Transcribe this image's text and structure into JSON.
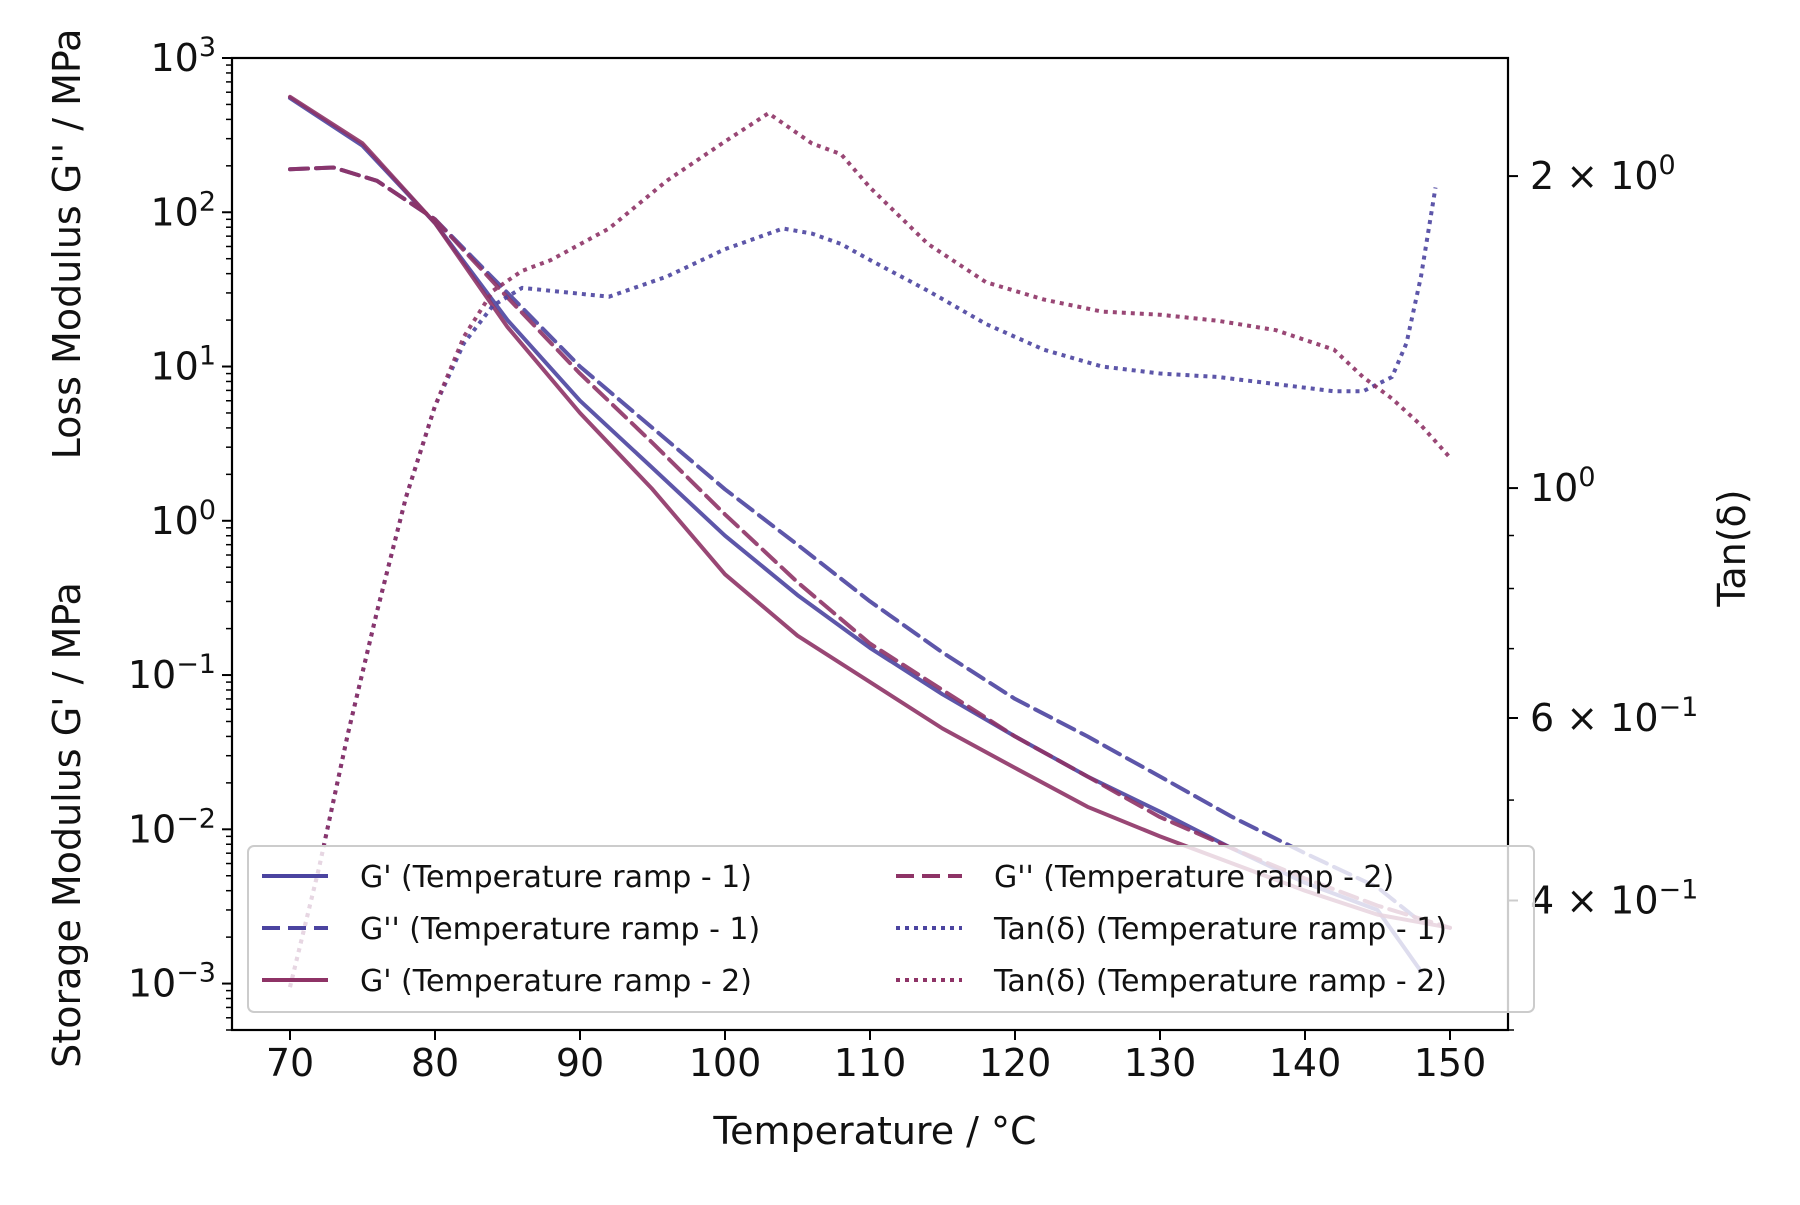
{
  "chart_data": {
    "type": "line",
    "xlabel": "Temperature / °C",
    "ylabel_left_top": "Loss Modulus G'' / MPa",
    "ylabel_left_bottom": "Storage Modulus G' / MPa",
    "ylabel_right": "Tan(δ)",
    "xlim": [
      66,
      154
    ],
    "ylim_left": [
      0.0005,
      1000
    ],
    "ylim_right": [
      0.3,
      2.6
    ],
    "y_left_scale": "log",
    "y_right_scale": "log",
    "grid": false,
    "legend_placement": "lower-left",
    "x_ticks": [
      "70",
      "80",
      "90",
      "100",
      "110",
      "120",
      "130",
      "140",
      "150"
    ],
    "y_left_ticks": [
      {
        "base": "10",
        "exp": "3"
      },
      {
        "base": "10",
        "exp": "2"
      },
      {
        "base": "10",
        "exp": "1"
      },
      {
        "base": "10",
        "exp": "0"
      },
      {
        "base": "10",
        "exp": "−1"
      },
      {
        "base": "10",
        "exp": "−2"
      },
      {
        "base": "10",
        "exp": "−3"
      }
    ],
    "y_right_ticks": [
      {
        "mant": "2 × 10",
        "exp": "0",
        "value": 2.0
      },
      {
        "mant": "10",
        "exp": "0",
        "value": 1.0
      },
      {
        "mant": "6 × 10",
        "exp": "−1",
        "value": 0.6
      },
      {
        "mant": "4 × 10",
        "exp": "−1",
        "value": 0.4
      }
    ],
    "colors": {
      "ramp1": "#4b44a0",
      "ramp2": "#8e3366"
    },
    "series": [
      {
        "name": "G' (Temperature ramp - 1)",
        "axis": "left",
        "style": "solid",
        "color": "#4b44a0",
        "x": [
          70,
          75,
          80,
          85,
          90,
          95,
          100,
          105,
          110,
          115,
          120,
          125,
          130,
          135,
          140,
          145,
          148
        ],
        "y": [
          550,
          270,
          85,
          20,
          6.0,
          2.2,
          0.8,
          0.33,
          0.15,
          0.075,
          0.04,
          0.022,
          0.013,
          0.0075,
          0.0045,
          0.003,
          0.0012
        ]
      },
      {
        "name": "G'' (Temperature ramp - 1)",
        "axis": "left",
        "style": "dashed",
        "color": "#4b44a0",
        "x": [
          70,
          73,
          76,
          80,
          85,
          90,
          95,
          100,
          105,
          110,
          115,
          120,
          125,
          130,
          135,
          140,
          145,
          148
        ],
        "y": [
          190,
          195,
          160,
          90,
          30,
          10,
          4.0,
          1.6,
          0.7,
          0.3,
          0.14,
          0.07,
          0.04,
          0.022,
          0.012,
          0.007,
          0.0042,
          0.0025
        ]
      },
      {
        "name": "G' (Temperature ramp - 2)",
        "axis": "left",
        "style": "solid",
        "color": "#8e3366",
        "x": [
          70,
          75,
          80,
          85,
          90,
          95,
          100,
          105,
          110,
          115,
          120,
          125,
          130,
          135,
          140,
          145,
          150
        ],
        "y": [
          560,
          280,
          85,
          18,
          5.0,
          1.6,
          0.45,
          0.18,
          0.09,
          0.045,
          0.025,
          0.014,
          0.009,
          0.006,
          0.004,
          0.0028,
          0.0023
        ]
      },
      {
        "name": "G'' (Temperature ramp - 2)",
        "axis": "left",
        "style": "dashed",
        "color": "#8e3366",
        "x": [
          70,
          73,
          76,
          80,
          85,
          90,
          95,
          100,
          105,
          110,
          115,
          120,
          125,
          130,
          135,
          140,
          145,
          150
        ],
        "y": [
          190,
          195,
          160,
          90,
          28,
          9.0,
          3.2,
          1.1,
          0.4,
          0.16,
          0.08,
          0.04,
          0.022,
          0.012,
          0.0075,
          0.0048,
          0.0032,
          0.0023
        ]
      },
      {
        "name": "Tan(δ) (Temperature ramp - 1)",
        "axis": "right",
        "style": "dotted",
        "color": "#4b44a0",
        "x": [
          70,
          72,
          74,
          76,
          78,
          80,
          82,
          84,
          86,
          88,
          92,
          96,
          100,
          104,
          106,
          108,
          110,
          114,
          118,
          122,
          126,
          130,
          134,
          138,
          142,
          144,
          146,
          147,
          148,
          149
        ],
        "y": [
          0.33,
          0.43,
          0.58,
          0.76,
          0.98,
          1.2,
          1.38,
          1.5,
          1.56,
          1.55,
          1.53,
          1.6,
          1.7,
          1.78,
          1.76,
          1.72,
          1.66,
          1.55,
          1.44,
          1.36,
          1.31,
          1.29,
          1.28,
          1.26,
          1.24,
          1.24,
          1.28,
          1.38,
          1.6,
          1.95
        ]
      },
      {
        "name": "Tan(δ) (Temperature ramp - 2)",
        "axis": "right",
        "style": "dotted",
        "color": "#8e3366",
        "x": [
          70,
          72,
          74,
          76,
          78,
          80,
          82,
          84,
          86,
          88,
          92,
          96,
          100,
          103,
          106,
          108,
          110,
          114,
          118,
          122,
          126,
          130,
          134,
          138,
          142,
          144,
          146,
          148,
          150
        ],
        "y": [
          0.33,
          0.43,
          0.58,
          0.76,
          0.98,
          1.2,
          1.4,
          1.55,
          1.62,
          1.66,
          1.78,
          1.98,
          2.16,
          2.3,
          2.15,
          2.1,
          1.95,
          1.72,
          1.58,
          1.52,
          1.48,
          1.47,
          1.45,
          1.42,
          1.36,
          1.28,
          1.22,
          1.15,
          1.07
        ]
      }
    ]
  }
}
